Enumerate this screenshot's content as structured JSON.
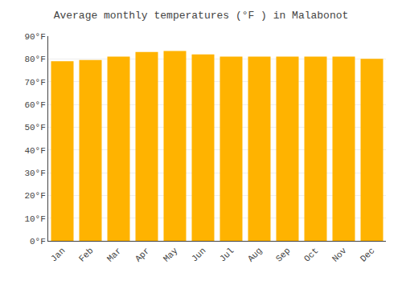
{
  "chart_data": {
    "type": "bar",
    "title": "Average monthly temperatures (°F ) in Malabonot",
    "categories": [
      "Jan",
      "Feb",
      "Mar",
      "Apr",
      "May",
      "Jun",
      "Jul",
      "Aug",
      "Sep",
      "Oct",
      "Nov",
      "Dec"
    ],
    "values": [
      79,
      79.5,
      81,
      83,
      83.5,
      82,
      81,
      81,
      81,
      81,
      81,
      80
    ],
    "color": "#FFB300",
    "ylim": [
      0,
      90
    ],
    "yticks": [
      {
        "value": 0,
        "label": "0°F"
      },
      {
        "value": 10,
        "label": "10°F"
      },
      {
        "value": 20,
        "label": "20°F"
      },
      {
        "value": 30,
        "label": "30°F"
      },
      {
        "value": 40,
        "label": "40°F"
      },
      {
        "value": 50,
        "label": "50°F"
      },
      {
        "value": 60,
        "label": "60°F"
      },
      {
        "value": 70,
        "label": "70°F"
      },
      {
        "value": 80,
        "label": "80°F"
      },
      {
        "value": 90,
        "label": "90°F"
      }
    ],
    "grid": true
  }
}
